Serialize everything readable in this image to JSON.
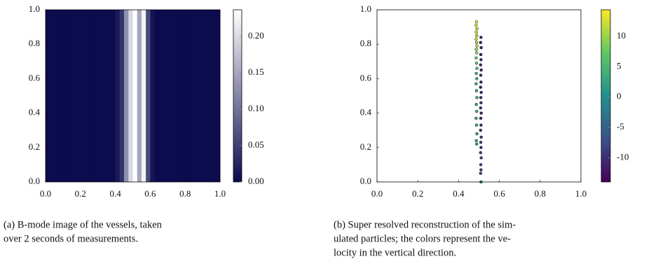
{
  "chart_data": [
    {
      "type": "heatmap",
      "xbins": [
        0,
        0.025,
        0.05,
        0.075,
        0.1,
        0.125,
        0.15,
        0.175,
        0.2,
        0.225,
        0.25,
        0.275,
        0.3,
        0.325,
        0.35,
        0.375,
        0.4,
        0.425,
        0.45,
        0.475,
        0.5,
        0.525,
        0.55,
        0.575,
        0.6,
        0.625,
        0.65,
        0.675,
        0.7,
        0.725,
        0.75,
        0.775,
        0.8,
        0.825,
        0.85,
        0.875,
        0.9,
        0.925,
        0.95,
        0.975,
        1
      ],
      "values": [
        0,
        0,
        0,
        0,
        0,
        0,
        0,
        0,
        0,
        0,
        0,
        0,
        0,
        0,
        0,
        0,
        0.015,
        0.04,
        0.13,
        0.2,
        0.235,
        0.15,
        0.225,
        0.06,
        0.01,
        0,
        0,
        0,
        0,
        0,
        0,
        0,
        0,
        0,
        0,
        0,
        0,
        0,
        0,
        0
      ],
      "xlim": [
        0,
        1
      ],
      "ylim": [
        0,
        1
      ],
      "xticks": [
        {
          "value": 0,
          "label": "0.0"
        },
        0.2,
        0.4,
        0.6,
        0.8,
        {
          "value": 1,
          "label": "1.0"
        }
      ],
      "yticks": [
        {
          "value": 0,
          "label": "0.0"
        },
        0.2,
        0.4,
        0.6,
        0.8,
        {
          "value": 1,
          "label": "1.0"
        }
      ],
      "clim": [
        0,
        0.2365
      ],
      "cticks": [
        {
          "value": 0,
          "label": "0.00"
        },
        {
          "value": 0.05,
          "label": "0.05"
        },
        {
          "value": 0.1,
          "label": "0.10"
        },
        {
          "value": 0.15,
          "label": "0.15"
        },
        {
          "value": 0.2,
          "label": "0.20"
        }
      ],
      "colormap": [
        "#0b0b4e",
        "#ffffff"
      ]
    },
    {
      "type": "scatter",
      "x": [
        0.488,
        0.486,
        0.49,
        0.487,
        0.489,
        0.486,
        0.488,
        0.49,
        0.487,
        0.489,
        0.486,
        0.488,
        0.49,
        0.487,
        0.489,
        0.486,
        0.488,
        0.49,
        0.487,
        0.489,
        0.486,
        0.488,
        0.49,
        0.487,
        0.489,
        0.51,
        0.508,
        0.511,
        0.509,
        0.51,
        0.508,
        0.511,
        0.509,
        0.51,
        0.508,
        0.511,
        0.509,
        0.51,
        0.508,
        0.511,
        0.509,
        0.51,
        0.508,
        0.511,
        0.509,
        0.51,
        0.508,
        0.511,
        0.509,
        0.51,
        0.508,
        0.51
      ],
      "y": [
        0.93,
        0.91,
        0.89,
        0.87,
        0.85,
        0.83,
        0.81,
        0.79,
        0.77,
        0.75,
        0.72,
        0.69,
        0.66,
        0.63,
        0.6,
        0.57,
        0.53,
        0.49,
        0.45,
        0.41,
        0.37,
        0.33,
        0.28,
        0.24,
        0.22,
        0.84,
        0.81,
        0.78,
        0.74,
        0.71,
        0.68,
        0.65,
        0.62,
        0.58,
        0.55,
        0.52,
        0.49,
        0.46,
        0.43,
        0.4,
        0.37,
        0.33,
        0.3,
        0.26,
        0.23,
        0.2,
        0.17,
        0.14,
        0.1,
        0.07,
        0.05,
        0
      ],
      "c": [
        13,
        13,
        12,
        12,
        11,
        12,
        10,
        11,
        9,
        10,
        8,
        7,
        6,
        5,
        4,
        4,
        3,
        4,
        3,
        4,
        3,
        3,
        2,
        3,
        2,
        -11,
        -12,
        -11,
        -12,
        -11,
        -11,
        -12,
        -11,
        -11,
        -12,
        -11,
        -11,
        -10,
        -11,
        -12,
        -11,
        -10,
        -11,
        -10,
        -9,
        -10,
        -9,
        -9,
        -8,
        -9,
        -8,
        -2
      ],
      "xlim": [
        0,
        1
      ],
      "ylim": [
        0,
        1
      ],
      "xticks": [
        {
          "value": 0,
          "label": "0.0"
        },
        0.2,
        0.4,
        0.6,
        0.8,
        {
          "value": 1,
          "label": "1.0"
        }
      ],
      "yticks": [
        {
          "value": 0,
          "label": "0.0"
        },
        0.2,
        0.4,
        0.6,
        0.8,
        {
          "value": 1,
          "label": "1.0"
        }
      ],
      "clim": [
        -14,
        14.4
      ],
      "cticks": [
        -10,
        -5,
        0,
        5,
        10
      ],
      "colormap": [
        "#440154",
        "#3b528b",
        "#21918c",
        "#5ec962",
        "#fde725"
      ]
    }
  ],
  "captions": [
    [
      "(a) B-mode image of the vessels, taken",
      "over 2 seconds of measurements."
    ],
    [
      "(b) Super resolved reconstruction of the sim-",
      "ulated particles; the colors represent the ve-",
      "locity in the vertical direction."
    ]
  ]
}
